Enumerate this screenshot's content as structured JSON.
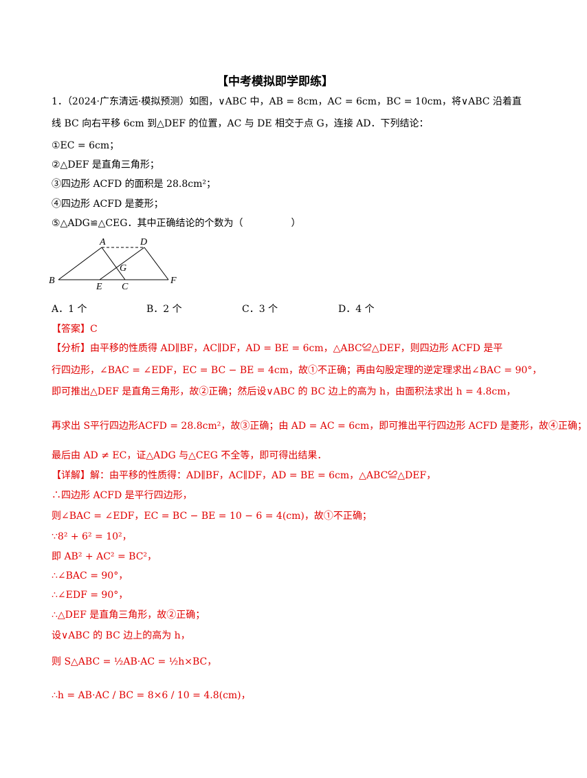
{
  "header": {
    "title": "【中考模拟即学即练】"
  },
  "question": {
    "lines": [
      "1．（2024·广东清远·模拟预测）如图，∨ABC 中，AB = 8cm，AC = 6cm，BC = 10cm，将∨ABC 沿着直",
      "线 BC 向右平移 6cm 到△DEF 的位置，AC 与 DE 相交于点 G，连接 AD．下列结论：",
      "①EC = 6cm；",
      "②△DEF 是直角三角形；",
      "③四边形 ACFD 的面积是 28.8cm²；",
      "④四边形 ACFD 是菱形；",
      "⑤△ADG≌△CEG．其中正确结论的个数为（　　　　　）"
    ],
    "figure": {
      "labels": [
        "A",
        "D",
        "G",
        "B",
        "E",
        "C",
        "F"
      ]
    },
    "options": [
      "A．1 个",
      "B．2 个",
      "C．3 个",
      "D．4 个"
    ]
  },
  "solution": {
    "lines": [
      "【答案】C",
      "【分析】由平移的性质得 AD∥BF，AC∥DF，AD = BE = 6cm，△ABC≌△DEF，则四边形 ACFD 是平",
      "行四边形，∠BAC = ∠EDF，EC = BC − BE = 4cm，故①不正确；再由勾股定理的逆定理求出∠BAC = 90°，",
      "即可推出△DEF 是直角三角形，故②正确；然后设∨ABC 的 BC 边上的高为 h，由面积法求出 h = 4.8cm，",
      "再求出 S平行四边形ACFD = 28.8cm²，故③正确；由 AD = AC = 6cm，即可推出平行四边形 ACFD 是菱形，故④正确；",
      "最后由 AD ≠ EC，证△ADG 与△CEG 不全等，即可得出结果．",
      "【详解】解：由平移的性质得：AD∥BF，AC∥DF，AD = BE = 6cm，△ABC≌△DEF，",
      "∴四边形 ACFD 是平行四边形，",
      "则∠BAC = ∠EDF，EC = BC − BE = 10 − 6 = 4(cm)，故①不正确；",
      "∵8² + 6² = 10²，",
      "即 AB² + AC² = BC²，",
      "∴∠BAC = 90°，",
      "∴∠EDF = 90°，",
      "∴△DEF 是直角三角形，故②正确；",
      "设∨ABC 的 BC 边上的高为 h，",
      "则 S△ABC = ½AB·AC = ½h×BC，",
      "∴h = AB·AC / BC = 8×6 / 10 = 4.8(cm)，"
    ]
  }
}
